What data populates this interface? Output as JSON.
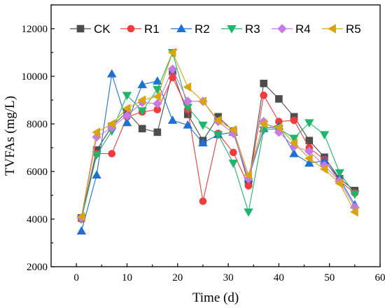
{
  "chart_data": {
    "type": "line",
    "xlabel": "Time (d)",
    "ylabel": "TVFAs (mg/L)",
    "xlim": [
      -5,
      60
    ],
    "ylim": [
      2000,
      13000
    ],
    "xticks": [
      "0",
      "10",
      "20",
      "30",
      "40",
      "50",
      "60"
    ],
    "yticks": [
      "2000",
      "4000",
      "6000",
      "8000",
      "10000",
      "12000"
    ],
    "legend_position": "top",
    "x": [
      1,
      4,
      7,
      10,
      13,
      16,
      19,
      22,
      25,
      28,
      31,
      34,
      37,
      40,
      43,
      46,
      49,
      52,
      55
    ],
    "series": [
      {
        "name": "CK",
        "color": "#4d4d4d",
        "marker": "square",
        "values": [
          4050,
          6900,
          7900,
          8500,
          7800,
          7650,
          10200,
          8400,
          7300,
          8300,
          7700,
          5500,
          9700,
          9050,
          8300,
          7300,
          6600,
          5700,
          5200
        ]
      },
      {
        "name": "R1",
        "color": "#f03c3c",
        "marker": "circle",
        "values": [
          4000,
          6750,
          6750,
          8300,
          8500,
          8600,
          9950,
          8600,
          4750,
          7600,
          6800,
          5400,
          9200,
          8100,
          8150,
          7000,
          6500,
          5600,
          5100
        ]
      },
      {
        "name": "R2",
        "color": "#1f6fd6",
        "marker": "triangle-up",
        "values": [
          3500,
          5850,
          10100,
          8050,
          9650,
          9800,
          8150,
          7950,
          7200,
          7550,
          7650,
          5700,
          7800,
          7900,
          6750,
          6350,
          6450,
          5700,
          4600
        ]
      },
      {
        "name": "R3",
        "color": "#1fb56b",
        "marker": "triangle-down",
        "values": [
          4000,
          6700,
          7700,
          9200,
          8550,
          9450,
          11000,
          8700,
          7950,
          7550,
          6350,
          4300,
          7750,
          7800,
          7400,
          8050,
          7550,
          5950,
          5050
        ]
      },
      {
        "name": "R4",
        "color": "#c77ae6",
        "marker": "diamond",
        "values": [
          4050,
          7450,
          7850,
          8350,
          8900,
          8850,
          10300,
          8950,
          8950,
          8100,
          7600,
          5700,
          8100,
          7650,
          7050,
          6850,
          6250,
          5600,
          4500
        ]
      },
      {
        "name": "R5",
        "color": "#d9a410",
        "marker": "triangle-left",
        "values": [
          4100,
          7650,
          8000,
          8650,
          9000,
          9150,
          11000,
          9550,
          8950,
          8150,
          7750,
          5850,
          8000,
          7850,
          7200,
          6550,
          6100,
          5500,
          4300
        ]
      }
    ]
  }
}
